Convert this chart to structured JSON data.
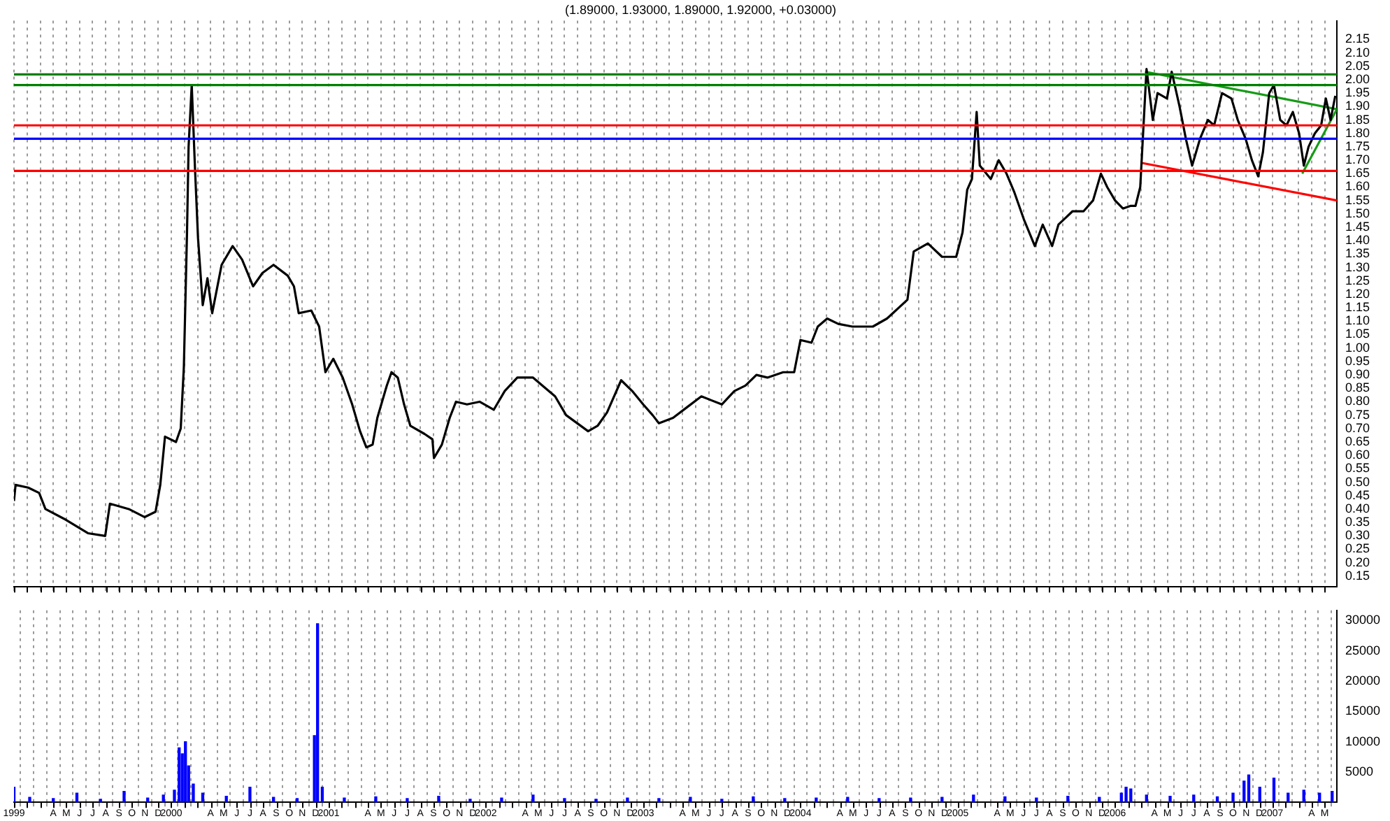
{
  "chart_data": [
    {
      "type": "line",
      "title": "(1.89000, 1.93000, 1.89000, 1.92000, +0.03000)",
      "marker": "none",
      "grid": "x",
      "tick_labels": "y",
      "xlim": [
        1999,
        2007.41
      ],
      "ylim": [
        0.11,
        2.22
      ],
      "xticks": [
        {
          "value": 1999,
          "label": null
        },
        {
          "value": 1999.083,
          "label": null
        },
        {
          "value": 1999.167,
          "label": null
        },
        {
          "value": 1999.25,
          "label": null
        },
        {
          "value": 1999.333,
          "label": null
        },
        {
          "value": 1999.417,
          "label": null
        },
        {
          "value": 1999.5,
          "label": null
        },
        {
          "value": 1999.583,
          "label": null
        },
        {
          "value": 1999.667,
          "label": null
        },
        {
          "value": 1999.75,
          "label": null
        },
        {
          "value": 1999.833,
          "label": null
        },
        {
          "value": 1999.917,
          "label": null
        },
        {
          "value": 2000,
          "label": null
        },
        {
          "value": 2000.083,
          "label": null
        },
        {
          "value": 2000.167,
          "label": null
        },
        {
          "value": 2000.25,
          "label": null
        },
        {
          "value": 2000.333,
          "label": null
        },
        {
          "value": 2000.417,
          "label": null
        },
        {
          "value": 2000.5,
          "label": null
        },
        {
          "value": 2000.583,
          "label": null
        },
        {
          "value": 2000.667,
          "label": null
        },
        {
          "value": 2000.75,
          "label": null
        },
        {
          "value": 2000.833,
          "label": null
        },
        {
          "value": 2000.917,
          "label": null
        },
        {
          "value": 2001,
          "label": null
        },
        {
          "value": 2001.083,
          "label": null
        },
        {
          "value": 2001.167,
          "label": null
        },
        {
          "value": 2001.25,
          "label": null
        },
        {
          "value": 2001.333,
          "label": null
        },
        {
          "value": 2001.417,
          "label": null
        },
        {
          "value": 2001.5,
          "label": null
        },
        {
          "value": 2001.583,
          "label": null
        },
        {
          "value": 2001.667,
          "label": null
        },
        {
          "value": 2001.75,
          "label": null
        },
        {
          "value": 2001.833,
          "label": null
        },
        {
          "value": 2001.917,
          "label": null
        },
        {
          "value": 2002,
          "label": null
        },
        {
          "value": 2002.083,
          "label": null
        },
        {
          "value": 2002.167,
          "label": null
        },
        {
          "value": 2002.25,
          "label": null
        },
        {
          "value": 2002.333,
          "label": null
        },
        {
          "value": 2002.417,
          "label": null
        },
        {
          "value": 2002.5,
          "label": null
        },
        {
          "value": 2002.583,
          "label": null
        },
        {
          "value": 2002.667,
          "label": null
        },
        {
          "value": 2002.75,
          "label": null
        },
        {
          "value": 2002.833,
          "label": null
        },
        {
          "value": 2002.917,
          "label": null
        },
        {
          "value": 2003,
          "label": null
        },
        {
          "value": 2003.083,
          "label": null
        },
        {
          "value": 2003.167,
          "label": null
        },
        {
          "value": 2003.25,
          "label": null
        },
        {
          "value": 2003.333,
          "label": null
        },
        {
          "value": 2003.417,
          "label": null
        },
        {
          "value": 2003.5,
          "label": null
        },
        {
          "value": 2003.583,
          "label": null
        },
        {
          "value": 2003.667,
          "label": null
        },
        {
          "value": 2003.75,
          "label": null
        },
        {
          "value": 2003.833,
          "label": null
        },
        {
          "value": 2003.917,
          "label": null
        },
        {
          "value": 2004,
          "label": null
        },
        {
          "value": 2004.083,
          "label": null
        },
        {
          "value": 2004.167,
          "label": null
        },
        {
          "value": 2004.25,
          "label": null
        },
        {
          "value": 2004.333,
          "label": null
        },
        {
          "value": 2004.417,
          "label": null
        },
        {
          "value": 2004.5,
          "label": null
        },
        {
          "value": 2004.583,
          "label": null
        },
        {
          "value": 2004.667,
          "label": null
        },
        {
          "value": 2004.75,
          "label": null
        },
        {
          "value": 2004.833,
          "label": null
        },
        {
          "value": 2004.917,
          "label": null
        },
        {
          "value": 2005,
          "label": null
        },
        {
          "value": 2005.083,
          "label": null
        },
        {
          "value": 2005.167,
          "label": null
        },
        {
          "value": 2005.25,
          "label": null
        },
        {
          "value": 2005.333,
          "label": null
        },
        {
          "value": 2005.417,
          "label": null
        },
        {
          "value": 2005.5,
          "label": null
        },
        {
          "value": 2005.583,
          "label": null
        },
        {
          "value": 2005.667,
          "label": null
        },
        {
          "value": 2005.75,
          "label": null
        },
        {
          "value": 2005.833,
          "label": null
        },
        {
          "value": 2005.917,
          "label": null
        },
        {
          "value": 2006,
          "label": null
        },
        {
          "value": 2006.083,
          "label": null
        },
        {
          "value": 2006.167,
          "label": null
        },
        {
          "value": 2006.25,
          "label": null
        },
        {
          "value": 2006.333,
          "label": null
        },
        {
          "value": 2006.417,
          "label": null
        },
        {
          "value": 2006.5,
          "label": null
        },
        {
          "value": 2006.583,
          "label": null
        },
        {
          "value": 2006.667,
          "label": null
        },
        {
          "value": 2006.75,
          "label": null
        },
        {
          "value": 2006.833,
          "label": null
        },
        {
          "value": 2006.917,
          "label": null
        },
        {
          "value": 2007,
          "label": null
        },
        {
          "value": 2007.083,
          "label": null
        },
        {
          "value": 2007.167,
          "label": null
        },
        {
          "value": 2007.25,
          "label": null
        },
        {
          "value": 2007.333,
          "label": null
        }
      ],
      "yticks": [
        0.15,
        {
          "value": 0.2,
          "label": "0.20"
        },
        0.25,
        {
          "value": 0.3,
          "label": "0.30"
        },
        0.35,
        {
          "value": 0.4,
          "label": "0.40"
        },
        0.45,
        {
          "value": 0.5,
          "label": "0.50"
        },
        0.55,
        {
          "value": 0.6,
          "label": "0.60"
        },
        0.65,
        {
          "value": 0.7,
          "label": "0.70"
        },
        0.75,
        {
          "value": 0.8,
          "label": "0.80"
        },
        0.85,
        {
          "value": 0.9,
          "label": "0.90"
        },
        0.95,
        {
          "value": 1,
          "label": "1.00"
        },
        1.05,
        {
          "value": 1.1,
          "label": "1.10"
        },
        1.15,
        {
          "value": 1.2,
          "label": "1.20"
        },
        1.25,
        {
          "value": 1.3,
          "label": "1.30"
        },
        1.35,
        {
          "value": 1.4,
          "label": "1.40"
        },
        1.45,
        {
          "value": 1.5,
          "label": "1.50"
        },
        1.55,
        {
          "value": 1.6,
          "label": "1.60"
        },
        1.65,
        {
          "value": 1.7,
          "label": "1.70"
        },
        1.75,
        {
          "value": 1.8,
          "label": "1.80"
        },
        1.85,
        {
          "value": 1.9,
          "label": "1.90"
        },
        1.95,
        {
          "value": 2,
          "label": "2.00"
        },
        2.05,
        {
          "value": 2.1,
          "label": "2.10"
        },
        2.15
      ],
      "ref_lines": [
        {
          "axis": "y",
          "value": 2.02,
          "color": "#008000"
        },
        {
          "axis": "y",
          "value": 1.98,
          "color": "#008000"
        },
        {
          "axis": "y",
          "value": 1.83,
          "color": "#ff0000"
        },
        {
          "axis": "y",
          "value": 1.78,
          "color": "#0000ff"
        },
        {
          "axis": "y",
          "value": 1.66,
          "color": "#ff0000"
        }
      ],
      "series": [
        {
          "color": "#000000",
          "x": [
            1999.0,
            1999.01,
            1999.09,
            1999.16,
            1999.2,
            1999.33,
            1999.47,
            1999.58,
            1999.61,
            1999.73,
            1999.83,
            1999.9,
            1999.93,
            1999.96,
            2000.03,
            2000.06,
            2000.08,
            2000.1,
            2000.11,
            2000.13,
            2000.15,
            2000.17,
            2000.2,
            2000.23,
            2000.26,
            2000.32,
            2000.39,
            2000.45,
            2000.52,
            2000.58,
            2000.65,
            2000.74,
            2000.78,
            2000.81,
            2000.89,
            2000.94,
            2000.98,
            2001.03,
            2001.09,
            2001.15,
            2001.2,
            2001.24,
            2001.28,
            2001.31,
            2001.37,
            2001.4,
            2001.44,
            2001.48,
            2001.52,
            2001.61,
            2001.66,
            2001.67,
            2001.72,
            2001.77,
            2001.81,
            2001.88,
            2001.96,
            2002.05,
            2002.12,
            2002.2,
            2002.3,
            2002.36,
            2002.44,
            2002.51,
            2002.58,
            2002.65,
            2002.71,
            2002.77,
            2002.86,
            2002.93,
            2003.0,
            2003.06,
            2003.1,
            2003.19,
            2003.28,
            2003.37,
            2003.5,
            2003.58,
            2003.65,
            2003.72,
            2003.79,
            2003.89,
            2003.96,
            2004.0,
            2004.07,
            2004.11,
            2004.17,
            2004.24,
            2004.33,
            2004.46,
            2004.55,
            2004.68,
            2004.72,
            2004.81,
            2004.9,
            2004.99,
            2005.03,
            2005.06,
            2005.09,
            2005.12,
            2005.14,
            2005.21,
            2005.26,
            2005.31,
            2005.36,
            2005.42,
            2005.49,
            2005.54,
            2005.6,
            2005.64,
            2005.73,
            2005.8,
            2005.86,
            2005.91,
            2005.95,
            2006.0,
            2006.05,
            2006.1,
            2006.13,
            2006.16,
            2006.19,
            2006.2,
            2006.24,
            2006.27,
            2006.33,
            2006.36,
            2006.41,
            2006.45,
            2006.49,
            2006.54,
            2006.59,
            2006.63,
            2006.68,
            2006.74,
            2006.78,
            2006.83,
            2006.87,
            2006.91,
            2006.94,
            2006.98,
            2007.01,
            2007.05,
            2007.09,
            2007.13,
            2007.17,
            2007.2,
            2007.23,
            2007.27,
            2007.31,
            2007.34,
            2007.37,
            2007.4
          ],
          "values": [
            0.43,
            0.49,
            0.48,
            0.46,
            0.4,
            0.36,
            0.31,
            0.3,
            0.42,
            0.4,
            0.37,
            0.39,
            0.49,
            0.67,
            0.65,
            0.7,
            0.93,
            1.43,
            1.75,
            1.98,
            1.68,
            1.41,
            1.16,
            1.26,
            1.13,
            1.31,
            1.38,
            1.33,
            1.23,
            1.28,
            1.31,
            1.27,
            1.23,
            1.13,
            1.14,
            1.08,
            0.91,
            0.96,
            0.89,
            0.79,
            0.69,
            0.63,
            0.64,
            0.74,
            0.86,
            0.91,
            0.89,
            0.79,
            0.71,
            0.68,
            0.66,
            0.59,
            0.64,
            0.74,
            0.8,
            0.79,
            0.8,
            0.77,
            0.84,
            0.89,
            0.89,
            0.86,
            0.82,
            0.75,
            0.72,
            0.69,
            0.71,
            0.76,
            0.88,
            0.84,
            0.79,
            0.75,
            0.72,
            0.74,
            0.78,
            0.82,
            0.79,
            0.84,
            0.86,
            0.9,
            0.89,
            0.91,
            0.91,
            1.03,
            1.02,
            1.08,
            1.11,
            1.09,
            1.08,
            1.08,
            1.11,
            1.18,
            1.36,
            1.39,
            1.34,
            1.34,
            1.43,
            1.59,
            1.63,
            1.88,
            1.68,
            1.63,
            1.7,
            1.65,
            1.58,
            1.48,
            1.38,
            1.46,
            1.38,
            1.46,
            1.51,
            1.51,
            1.55,
            1.65,
            1.6,
            1.55,
            1.52,
            1.53,
            1.53,
            1.6,
            1.93,
            2.04,
            1.85,
            1.95,
            1.93,
            2.03,
            1.9,
            1.78,
            1.68,
            1.78,
            1.85,
            1.83,
            1.95,
            1.93,
            1.85,
            1.78,
            1.7,
            1.64,
            1.73,
            1.95,
            1.98,
            1.85,
            1.83,
            1.88,
            1.8,
            1.68,
            1.75,
            1.8,
            1.83,
            1.93,
            1.85,
            1.94
          ]
        },
        {
          "color": "#169c16",
          "x": [
            2006.19,
            2007.41
          ],
          "values": [
            2.03,
            1.89
          ]
        },
        {
          "color": "#ff0000",
          "x": [
            2006.17,
            2007.41
          ],
          "values": [
            1.69,
            1.55
          ]
        },
        {
          "color": "#169c16",
          "x": [
            2007.19,
            2007.41
          ],
          "values": [
            1.65,
            1.89
          ]
        }
      ]
    },
    {
      "type": "bar",
      "color": "#0000ff",
      "grid": "x",
      "xlim": [
        1999,
        2007.41
      ],
      "ylim": [
        0,
        31700
      ],
      "xticks": [
        {
          "value": 1999,
          "label": "1999"
        },
        {
          "value": 1999.083,
          "label": null
        },
        {
          "value": 1999.167,
          "label": null
        },
        {
          "value": 1999.25,
          "label": "A"
        },
        {
          "value": 1999.333,
          "label": "M"
        },
        {
          "value": 1999.417,
          "label": "J"
        },
        {
          "value": 1999.5,
          "label": "J"
        },
        {
          "value": 1999.583,
          "label": "A"
        },
        {
          "value": 1999.667,
          "label": "S"
        },
        {
          "value": 1999.75,
          "label": "O"
        },
        {
          "value": 1999.833,
          "label": "N"
        },
        {
          "value": 1999.917,
          "label": "D"
        },
        {
          "value": 2000,
          "label": "2000"
        },
        {
          "value": 2000.083,
          "label": null
        },
        {
          "value": 2000.167,
          "label": null
        },
        {
          "value": 2000.25,
          "label": "A"
        },
        {
          "value": 2000.333,
          "label": "M"
        },
        {
          "value": 2000.417,
          "label": "J"
        },
        {
          "value": 2000.5,
          "label": "J"
        },
        {
          "value": 2000.583,
          "label": "A"
        },
        {
          "value": 2000.667,
          "label": "S"
        },
        {
          "value": 2000.75,
          "label": "O"
        },
        {
          "value": 2000.833,
          "label": "N"
        },
        {
          "value": 2000.917,
          "label": "D"
        },
        {
          "value": 2001,
          "label": "2001"
        },
        {
          "value": 2001.083,
          "label": null
        },
        {
          "value": 2001.167,
          "label": null
        },
        {
          "value": 2001.25,
          "label": "A"
        },
        {
          "value": 2001.333,
          "label": "M"
        },
        {
          "value": 2001.417,
          "label": "J"
        },
        {
          "value": 2001.5,
          "label": "J"
        },
        {
          "value": 2001.583,
          "label": "A"
        },
        {
          "value": 2001.667,
          "label": "S"
        },
        {
          "value": 2001.75,
          "label": "O"
        },
        {
          "value": 2001.833,
          "label": "N"
        },
        {
          "value": 2001.917,
          "label": "D"
        },
        {
          "value": 2002,
          "label": "2002"
        },
        {
          "value": 2002.083,
          "label": null
        },
        {
          "value": 2002.167,
          "label": null
        },
        {
          "value": 2002.25,
          "label": "A"
        },
        {
          "value": 2002.333,
          "label": "M"
        },
        {
          "value": 2002.417,
          "label": "J"
        },
        {
          "value": 2002.5,
          "label": "J"
        },
        {
          "value": 2002.583,
          "label": "A"
        },
        {
          "value": 2002.667,
          "label": "S"
        },
        {
          "value": 2002.75,
          "label": "O"
        },
        {
          "value": 2002.833,
          "label": "N"
        },
        {
          "value": 2002.917,
          "label": "D"
        },
        {
          "value": 2003,
          "label": "2003"
        },
        {
          "value": 2003.083,
          "label": null
        },
        {
          "value": 2003.167,
          "label": null
        },
        {
          "value": 2003.25,
          "label": "A"
        },
        {
          "value": 2003.333,
          "label": "M"
        },
        {
          "value": 2003.417,
          "label": "J"
        },
        {
          "value": 2003.5,
          "label": "J"
        },
        {
          "value": 2003.583,
          "label": "A"
        },
        {
          "value": 2003.667,
          "label": "S"
        },
        {
          "value": 2003.75,
          "label": "O"
        },
        {
          "value": 2003.833,
          "label": "N"
        },
        {
          "value": 2003.917,
          "label": "D"
        },
        {
          "value": 2004,
          "label": "2004"
        },
        {
          "value": 2004.083,
          "label": null
        },
        {
          "value": 2004.167,
          "label": null
        },
        {
          "value": 2004.25,
          "label": "A"
        },
        {
          "value": 2004.333,
          "label": "M"
        },
        {
          "value": 2004.417,
          "label": "J"
        },
        {
          "value": 2004.5,
          "label": "J"
        },
        {
          "value": 2004.583,
          "label": "A"
        },
        {
          "value": 2004.667,
          "label": "S"
        },
        {
          "value": 2004.75,
          "label": "O"
        },
        {
          "value": 2004.833,
          "label": "N"
        },
        {
          "value": 2004.917,
          "label": "D"
        },
        {
          "value": 2005,
          "label": "2005"
        },
        {
          "value": 2005.083,
          "label": null
        },
        {
          "value": 2005.167,
          "label": null
        },
        {
          "value": 2005.25,
          "label": "A"
        },
        {
          "value": 2005.333,
          "label": "M"
        },
        {
          "value": 2005.417,
          "label": "J"
        },
        {
          "value": 2005.5,
          "label": "J"
        },
        {
          "value": 2005.583,
          "label": "A"
        },
        {
          "value": 2005.667,
          "label": "S"
        },
        {
          "value": 2005.75,
          "label": "O"
        },
        {
          "value": 2005.833,
          "label": "N"
        },
        {
          "value": 2005.917,
          "label": "D"
        },
        {
          "value": 2006,
          "label": "2006"
        },
        {
          "value": 2006.083,
          "label": null
        },
        {
          "value": 2006.167,
          "label": null
        },
        {
          "value": 2006.25,
          "label": "A"
        },
        {
          "value": 2006.333,
          "label": "M"
        },
        {
          "value": 2006.417,
          "label": "J"
        },
        {
          "value": 2006.5,
          "label": "J"
        },
        {
          "value": 2006.583,
          "label": "A"
        },
        {
          "value": 2006.667,
          "label": "S"
        },
        {
          "value": 2006.75,
          "label": "O"
        },
        {
          "value": 2006.833,
          "label": "N"
        },
        {
          "value": 2006.917,
          "label": "D"
        },
        {
          "value": 2007,
          "label": "2007"
        },
        {
          "value": 2007.083,
          "label": null
        },
        {
          "value": 2007.167,
          "label": null
        },
        {
          "value": 2007.25,
          "label": "A"
        },
        {
          "value": 2007.333,
          "label": "M"
        }
      ],
      "yticks": [
        5000,
        10000,
        15000,
        20000,
        25000,
        30000
      ],
      "x": [
        1999.0,
        1999.1,
        1999.25,
        1999.4,
        1999.55,
        1999.7,
        1999.85,
        1999.95,
        2000.02,
        2000.05,
        2000.07,
        2000.09,
        2000.11,
        2000.14,
        2000.2,
        2000.35,
        2000.5,
        2000.65,
        2000.8,
        2000.91,
        2000.93,
        2000.96,
        2001.1,
        2001.3,
        2001.5,
        2001.7,
        2001.9,
        2002.1,
        2002.3,
        2002.5,
        2002.7,
        2002.9,
        2003.1,
        2003.3,
        2003.5,
        2003.7,
        2003.9,
        2004.1,
        2004.3,
        2004.5,
        2004.7,
        2004.9,
        2005.1,
        2005.3,
        2005.5,
        2005.7,
        2005.9,
        2006.04,
        2006.07,
        2006.1,
        2006.2,
        2006.35,
        2006.5,
        2006.65,
        2006.75,
        2006.82,
        2006.85,
        2006.92,
        2007.01,
        2007.1,
        2007.2,
        2007.3,
        2007.38
      ],
      "values": [
        2500,
        800,
        600,
        1500,
        500,
        1800,
        700,
        1200,
        2000,
        9000,
        8000,
        10000,
        6000,
        3000,
        1500,
        1000,
        2500,
        800,
        600,
        11000,
        29500,
        2500,
        700,
        900,
        600,
        1000,
        500,
        700,
        1200,
        600,
        500,
        700,
        600,
        800,
        500,
        900,
        600,
        700,
        800,
        600,
        700,
        800,
        1200,
        900,
        700,
        1000,
        800,
        1500,
        2500,
        2200,
        1200,
        1000,
        1200,
        900,
        1500,
        3500,
        4500,
        2500,
        4000,
        1500,
        2000,
        1500,
        1800
      ]
    }
  ]
}
